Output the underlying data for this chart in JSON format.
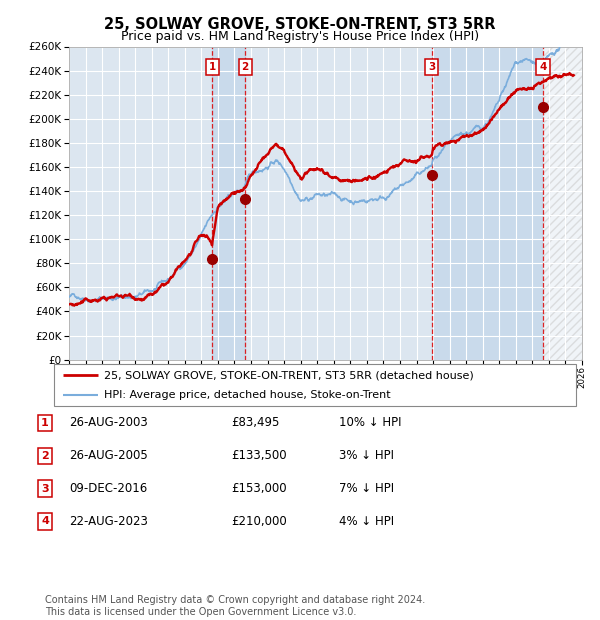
{
  "title": "25, SOLWAY GROVE, STOKE-ON-TRENT, ST3 5RR",
  "subtitle": "Price paid vs. HM Land Registry's House Price Index (HPI)",
  "title_fontsize": 10.5,
  "subtitle_fontsize": 9,
  "background_color": "#ffffff",
  "plot_bg_color": "#dce6f0",
  "grid_color": "#ffffff",
  "hpi_line_color": "#7aaddc",
  "price_line_color": "#cc0000",
  "dot_color": "#990000",
  "xmin": 1995,
  "xmax": 2026,
  "ymin": 0,
  "ymax": 260000,
  "ytick_step": 20000,
  "purchases": [
    {
      "year": 2003.65,
      "price": 83495,
      "label": "1"
    },
    {
      "year": 2005.65,
      "price": 133500,
      "label": "2"
    },
    {
      "year": 2016.93,
      "price": 153000,
      "label": "3"
    },
    {
      "year": 2023.64,
      "price": 210000,
      "label": "4"
    }
  ],
  "legend_entries": [
    {
      "label": "25, SOLWAY GROVE, STOKE-ON-TRENT, ST3 5RR (detached house)",
      "color": "#cc0000",
      "lw": 2.0
    },
    {
      "label": "HPI: Average price, detached house, Stoke-on-Trent",
      "color": "#7aaddc",
      "lw": 1.5
    }
  ],
  "table_rows": [
    {
      "num": "1",
      "date": "26-AUG-2003",
      "price": "£83,495",
      "hpi": "10% ↓ HPI"
    },
    {
      "num": "2",
      "date": "26-AUG-2005",
      "price": "£133,500",
      "hpi": "3% ↓ HPI"
    },
    {
      "num": "3",
      "date": "09-DEC-2016",
      "price": "£153,000",
      "hpi": "7% ↓ HPI"
    },
    {
      "num": "4",
      "date": "22-AUG-2023",
      "price": "£210,000",
      "hpi": "4% ↓ HPI"
    }
  ],
  "footer": "Contains HM Land Registry data © Crown copyright and database right 2024.\nThis data is licensed under the Open Government Licence v3.0.",
  "footer_fontsize": 7.0
}
